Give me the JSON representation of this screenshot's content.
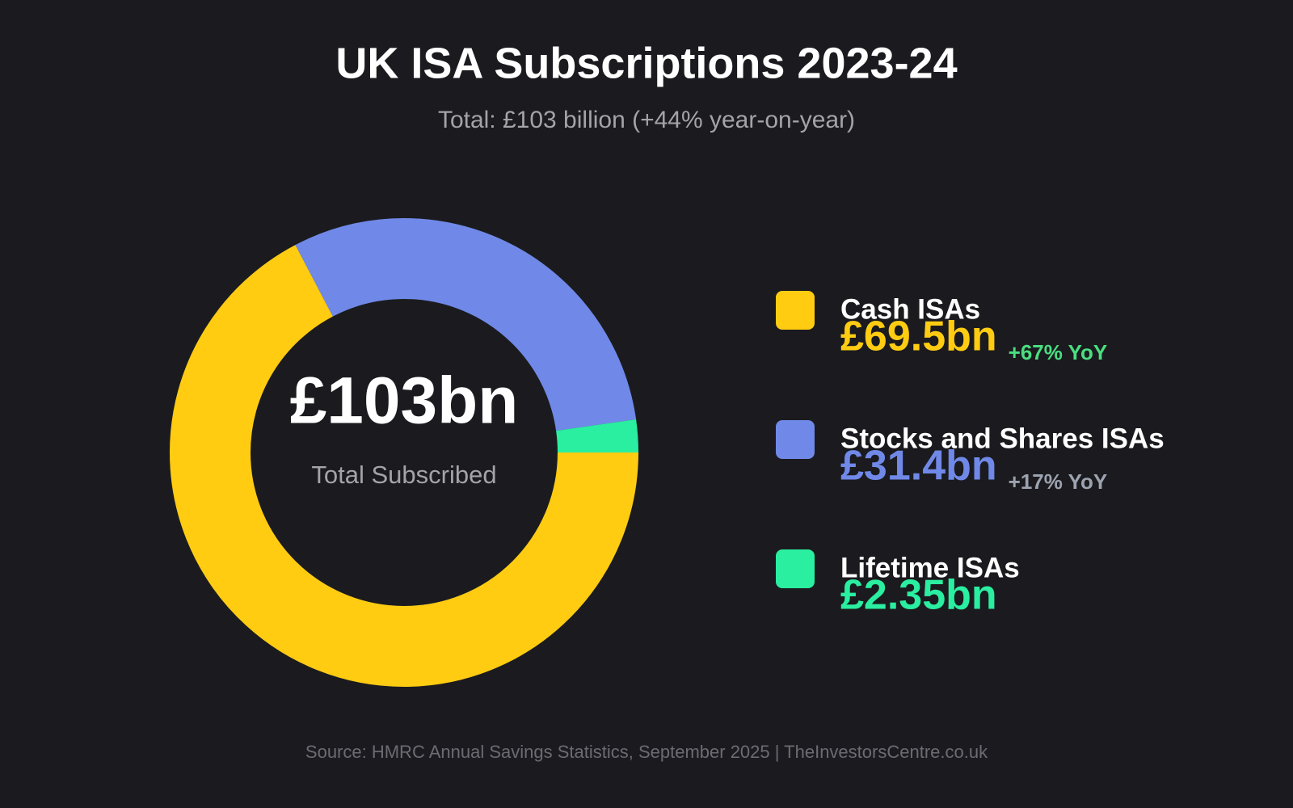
{
  "chart_data": {
    "type": "donut",
    "title": "UK ISA Subscriptions 2023-24",
    "subtitle": "Total: £103 billion (+44% year-on-year)",
    "center_label": "£103bn",
    "center_sublabel": "Total Subscribed",
    "categories": [
      "Cash ISAs",
      "Stocks and Shares ISAs",
      "Lifetime ISAs"
    ],
    "values": [
      69.5,
      31.4,
      2.35
    ],
    "value_labels": [
      "£69.5bn",
      "£31.4bn",
      "£2.35bn"
    ],
    "colors": [
      "#ffcc12",
      "#7089e8",
      "#2aeea0"
    ],
    "changes": [
      "+67% YoY",
      "+17% YoY",
      null
    ],
    "change_colors": [
      "#4ade80",
      "#9ca3af",
      null
    ],
    "source": "Source: HMRC Annual Savings Statistics, September 2025 | TheInvestorsCentre.co.uk"
  }
}
